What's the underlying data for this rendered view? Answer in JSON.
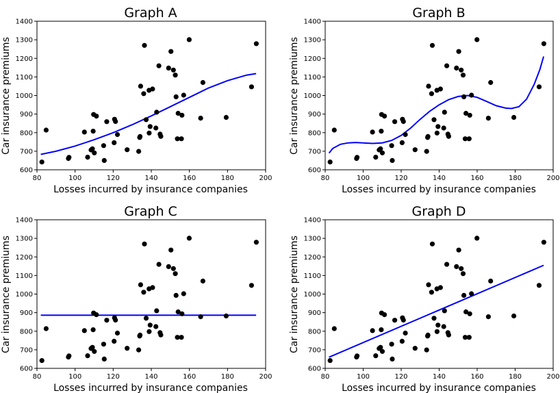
{
  "figure": {
    "xlabel": "Losses incurred by insurance companies",
    "ylabel": "Car insurance premiums"
  },
  "chart_data": [
    {
      "type": "scatter",
      "title": "Graph A",
      "fit": "smooth cubic curve",
      "xlabel": "Losses incurred by insurance companies",
      "ylabel": "Car insurance premiums",
      "xlim": [
        80,
        200
      ],
      "ylim": [
        600,
        1400
      ],
      "xticks": [
        80,
        100,
        120,
        140,
        160,
        180,
        200
      ],
      "yticks": [
        600,
        700,
        800,
        900,
        1000,
        1100,
        1200,
        1300,
        1400
      ],
      "curve": {
        "x": [
          82,
          90,
          100,
          110,
          120,
          130,
          140,
          150,
          160,
          170,
          180,
          190,
          195
        ],
        "y": [
          683,
          700,
          728,
          762,
          800,
          843,
          890,
          940,
          990,
          1040,
          1080,
          1110,
          1118
        ]
      },
      "grid": false
    },
    {
      "type": "scatter",
      "title": "Graph B",
      "fit": "high-order polynomial",
      "xlabel": "Losses incurred by insurance companies",
      "ylabel": "Car insurance premiums",
      "xlim": [
        80,
        200
      ],
      "ylim": [
        600,
        1400
      ],
      "xticks": [
        80,
        100,
        120,
        140,
        160,
        180,
        200
      ],
      "yticks": [
        600,
        700,
        800,
        900,
        1000,
        1100,
        1200,
        1300,
        1400
      ],
      "curve": {
        "x": [
          82,
          84,
          88,
          92,
          96,
          100,
          105,
          110,
          115,
          120,
          125,
          130,
          135,
          140,
          145,
          150,
          155,
          160,
          165,
          170,
          175,
          178,
          182,
          186,
          190,
          193,
          195
        ],
        "y": [
          690,
          715,
          737,
          745,
          747,
          745,
          742,
          745,
          758,
          785,
          825,
          872,
          915,
          950,
          978,
          995,
          1000,
          990,
          968,
          945,
          932,
          930,
          940,
          980,
          1060,
          1140,
          1210
        ]
      },
      "grid": false
    },
    {
      "type": "scatter",
      "title": "Graph C",
      "fit": "horizontal line",
      "xlabel": "Losses incurred by insurance companies",
      "ylabel": "Car insurance premiums",
      "xlim": [
        80,
        200
      ],
      "ylim": [
        600,
        1400
      ],
      "xticks": [
        80,
        100,
        120,
        140,
        160,
        180,
        200
      ],
      "yticks": [
        600,
        700,
        800,
        900,
        1000,
        1100,
        1200,
        1300,
        1400
      ],
      "curve": {
        "x": [
          82,
          195
        ],
        "y": [
          886,
          886
        ]
      },
      "grid": false
    },
    {
      "type": "scatter",
      "title": "Graph D",
      "fit": "straight line",
      "xlabel": "Losses incurred by insurance companies",
      "ylabel": "Car insurance premiums",
      "xlim": [
        80,
        200
      ],
      "ylim": [
        600,
        1400
      ],
      "xticks": [
        80,
        100,
        120,
        140,
        160,
        180,
        200
      ],
      "yticks": [
        600,
        700,
        800,
        900,
        1000,
        1100,
        1200,
        1300,
        1400
      ],
      "curve": {
        "x": [
          82,
          195
        ],
        "y": [
          660,
          1155
        ]
      },
      "grid": false
    }
  ],
  "points": {
    "x": [
      82.6,
      84.8,
      96.5,
      96.8,
      104.9,
      106.6,
      108.4,
      109.1,
      109.5,
      109.7,
      110.1,
      111.2,
      115.0,
      115.3,
      116.6,
      120.5,
      120.7,
      121.2,
      122.2,
      127.3,
      133.4,
      133.9,
      134.1,
      134.4,
      136.0,
      136.4,
      137.3,
      138.8,
      138.9,
      139.4,
      140.7,
      142.4,
      142.8,
      144.0,
      144.6,
      145.0,
      149.1,
      150.3,
      151.6,
      152.6,
      153.0,
      153.7,
      154.1,
      155.8,
      156.1,
      157.0,
      159.9,
      165.9,
      167.1,
      179.3,
      192.6,
      195.1
    ],
    "y": [
      642,
      814,
      661,
      667,
      803,
      668,
      707,
      713,
      808,
      898,
      691,
      889,
      730,
      650,
      859,
      746,
      872,
      860,
      790,
      708,
      699,
      774,
      779,
      1050,
      1010,
      1270,
      870,
      1028,
      798,
      833,
      1035,
      825,
      910,
      1160,
      792,
      780,
      1148,
      1237,
      1137,
      1110,
      993,
      767,
      904,
      767,
      894,
      1002,
      1301,
      878,
      1070,
      882,
      1047,
      1279
    ]
  },
  "colors": {
    "points": "#000000",
    "fit_line": "#0000ff",
    "axes": "#000000"
  }
}
